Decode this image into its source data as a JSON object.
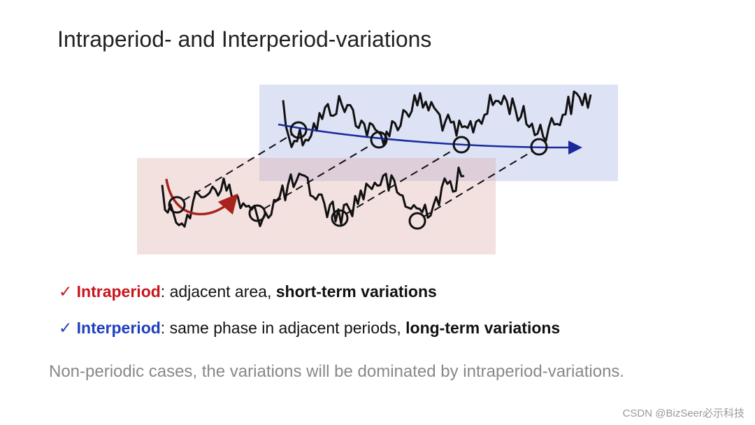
{
  "title": "Intraperiod- and Interperiod-variations",
  "bullets": [
    {
      "mark": "✓",
      "term": "Intraperiod",
      "text": ": adjacent area, ",
      "emphasis": "short-term variations"
    },
    {
      "mark": "✓",
      "term": "Interperiod",
      "text": ": same phase in adjacent periods, ",
      "emphasis": "long-term variations"
    }
  ],
  "note": "Non-periodic cases, the variations will be dominated by intraperiod-variations.",
  "watermark": "CSDN @BizSeer必示科技"
}
